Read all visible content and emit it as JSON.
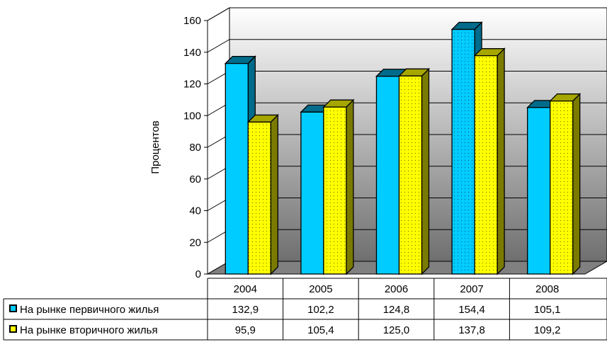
{
  "chart_data": {
    "type": "bar",
    "categories": [
      "2004",
      "2005",
      "2006",
      "2007",
      "2008"
    ],
    "series": [
      {
        "name": "На рынке первичного жилья",
        "values": [
          "132,9",
          "102,2",
          "124,8",
          "154,4",
          "105,1"
        ],
        "numeric": [
          132.9,
          102.2,
          124.8,
          154.4,
          105.1
        ],
        "color": "#00ccff",
        "side_color": "#006b8a",
        "top_color": "#006b8a"
      },
      {
        "name": "На рынке вторичного жилья",
        "values": [
          "95,9",
          "105,4",
          "125,0",
          "137,8",
          "109,2"
        ],
        "numeric": [
          95.9,
          105.4,
          125.0,
          137.8,
          109.2
        ],
        "color": "#ffff00",
        "side_color": "#7a7a00",
        "top_color": "#a6a600"
      }
    ],
    "ylabel": "Процентов",
    "xlabel": "",
    "ylim": [
      0,
      160
    ],
    "yticks": [
      "0",
      "20",
      "40",
      "60",
      "80",
      "100",
      "120",
      "140",
      "160"
    ],
    "grid": true,
    "legend": "data-table"
  }
}
